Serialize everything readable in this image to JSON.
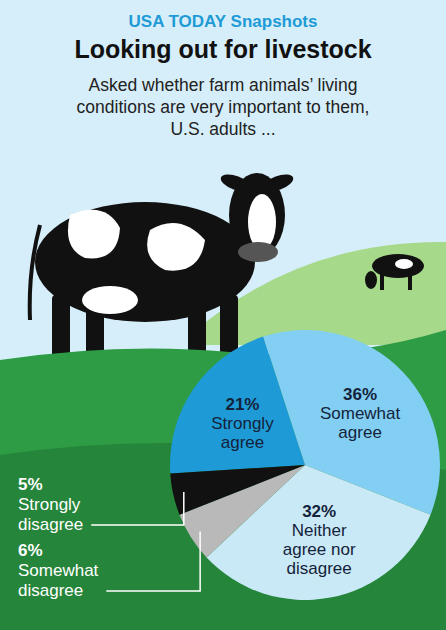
{
  "chart_data": {
    "type": "pie",
    "header": "USA TODAY Snapshots",
    "title": "Looking out for livestock",
    "subtitle": "Asked whether farm animals’ living conditions are very important to them, U.S. adults ...",
    "categories": [
      "Strongly agree",
      "Somewhat agree",
      "Neither agree nor disagree",
      "Somewhat disagree",
      "Strongly disagree"
    ],
    "values": [
      21,
      36,
      32,
      6,
      5
    ],
    "value_labels": [
      "21%",
      "36%",
      "32%",
      "6%",
      "5%"
    ],
    "colors": [
      "#1e9bd7",
      "#82cff3",
      "#c9e9f7",
      "#b9b9b9",
      "#111111"
    ],
    "data_labels": true
  }
}
